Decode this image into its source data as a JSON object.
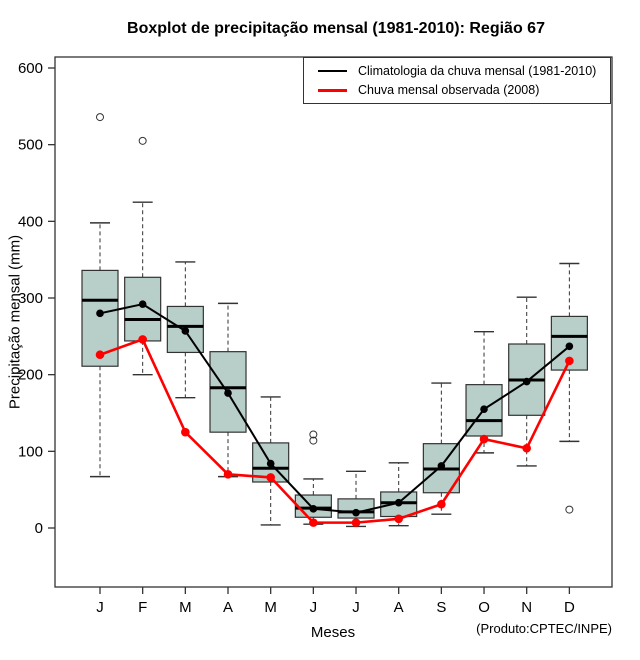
{
  "title": "Boxplot de precipitação mensal (1981-2010): Região 67",
  "chart_data": {
    "type": "boxplot",
    "title": "Boxplot de precipitação mensal (1981-2010): Região 67",
    "xlabel": "Meses",
    "ylabel": "Precipitação mensal (mm)",
    "footnote": "(Produto:CPTEC/INPE)",
    "categories": [
      "J",
      "F",
      "M",
      "A",
      "M",
      "J",
      "J",
      "A",
      "S",
      "O",
      "N",
      "D"
    ],
    "ylim": [
      0,
      600
    ],
    "yticks": [
      0,
      100,
      200,
      300,
      400,
      500,
      600
    ],
    "grid": false,
    "legend_position": "top-right",
    "box_fill": "#b7cec9",
    "axis_color": "#333333",
    "boxes": [
      {
        "month": "J",
        "whisker_low": 67,
        "q1": 211,
        "median": 297,
        "q3": 336,
        "whisker_high": 398,
        "outliers": [
          536
        ]
      },
      {
        "month": "F",
        "whisker_low": 200,
        "q1": 244,
        "median": 272,
        "q3": 327,
        "whisker_high": 425,
        "outliers": [
          505
        ]
      },
      {
        "month": "M",
        "whisker_low": 170,
        "q1": 229,
        "median": 263,
        "q3": 289,
        "whisker_high": 347,
        "outliers": []
      },
      {
        "month": "A",
        "whisker_low": 67,
        "q1": 125,
        "median": 183,
        "q3": 230,
        "whisker_high": 293,
        "outliers": []
      },
      {
        "month": "M",
        "whisker_low": 4,
        "q1": 60,
        "median": 78,
        "q3": 111,
        "whisker_high": 171,
        "outliers": []
      },
      {
        "month": "J",
        "whisker_low": 5,
        "q1": 14,
        "median": 26,
        "q3": 43,
        "whisker_high": 64,
        "outliers": [
          114,
          122
        ]
      },
      {
        "month": "J",
        "whisker_low": 2,
        "q1": 13,
        "median": 21,
        "q3": 38,
        "whisker_high": 74,
        "outliers": []
      },
      {
        "month": "A",
        "whisker_low": 3,
        "q1": 15,
        "median": 33,
        "q3": 47,
        "whisker_high": 85,
        "outliers": []
      },
      {
        "month": "S",
        "whisker_low": 18,
        "q1": 46,
        "median": 77,
        "q3": 110,
        "whisker_high": 189,
        "outliers": []
      },
      {
        "month": "O",
        "whisker_low": 98,
        "q1": 120,
        "median": 140,
        "q3": 187,
        "whisker_high": 256,
        "outliers": []
      },
      {
        "month": "N",
        "whisker_low": 81,
        "q1": 147,
        "median": 193,
        "q3": 240,
        "whisker_high": 301,
        "outliers": []
      },
      {
        "month": "D",
        "whisker_low": 113,
        "q1": 206,
        "median": 250,
        "q3": 276,
        "whisker_high": 345,
        "outliers": [
          24
        ]
      }
    ],
    "series": [
      {
        "name": "Climatologia da chuva mensal (1981-2010)",
        "color": "#000000",
        "marker": "filled-circle",
        "values": [
          280,
          292,
          257,
          176,
          84,
          25,
          20,
          33,
          81,
          155,
          191,
          237
        ]
      },
      {
        "name": "Chuva mensal observada (2008)",
        "color": "#ff0000",
        "marker": "filled-circle",
        "values": [
          226,
          246,
          125,
          70,
          66,
          7,
          7,
          12,
          31,
          116,
          104,
          218
        ]
      }
    ]
  }
}
